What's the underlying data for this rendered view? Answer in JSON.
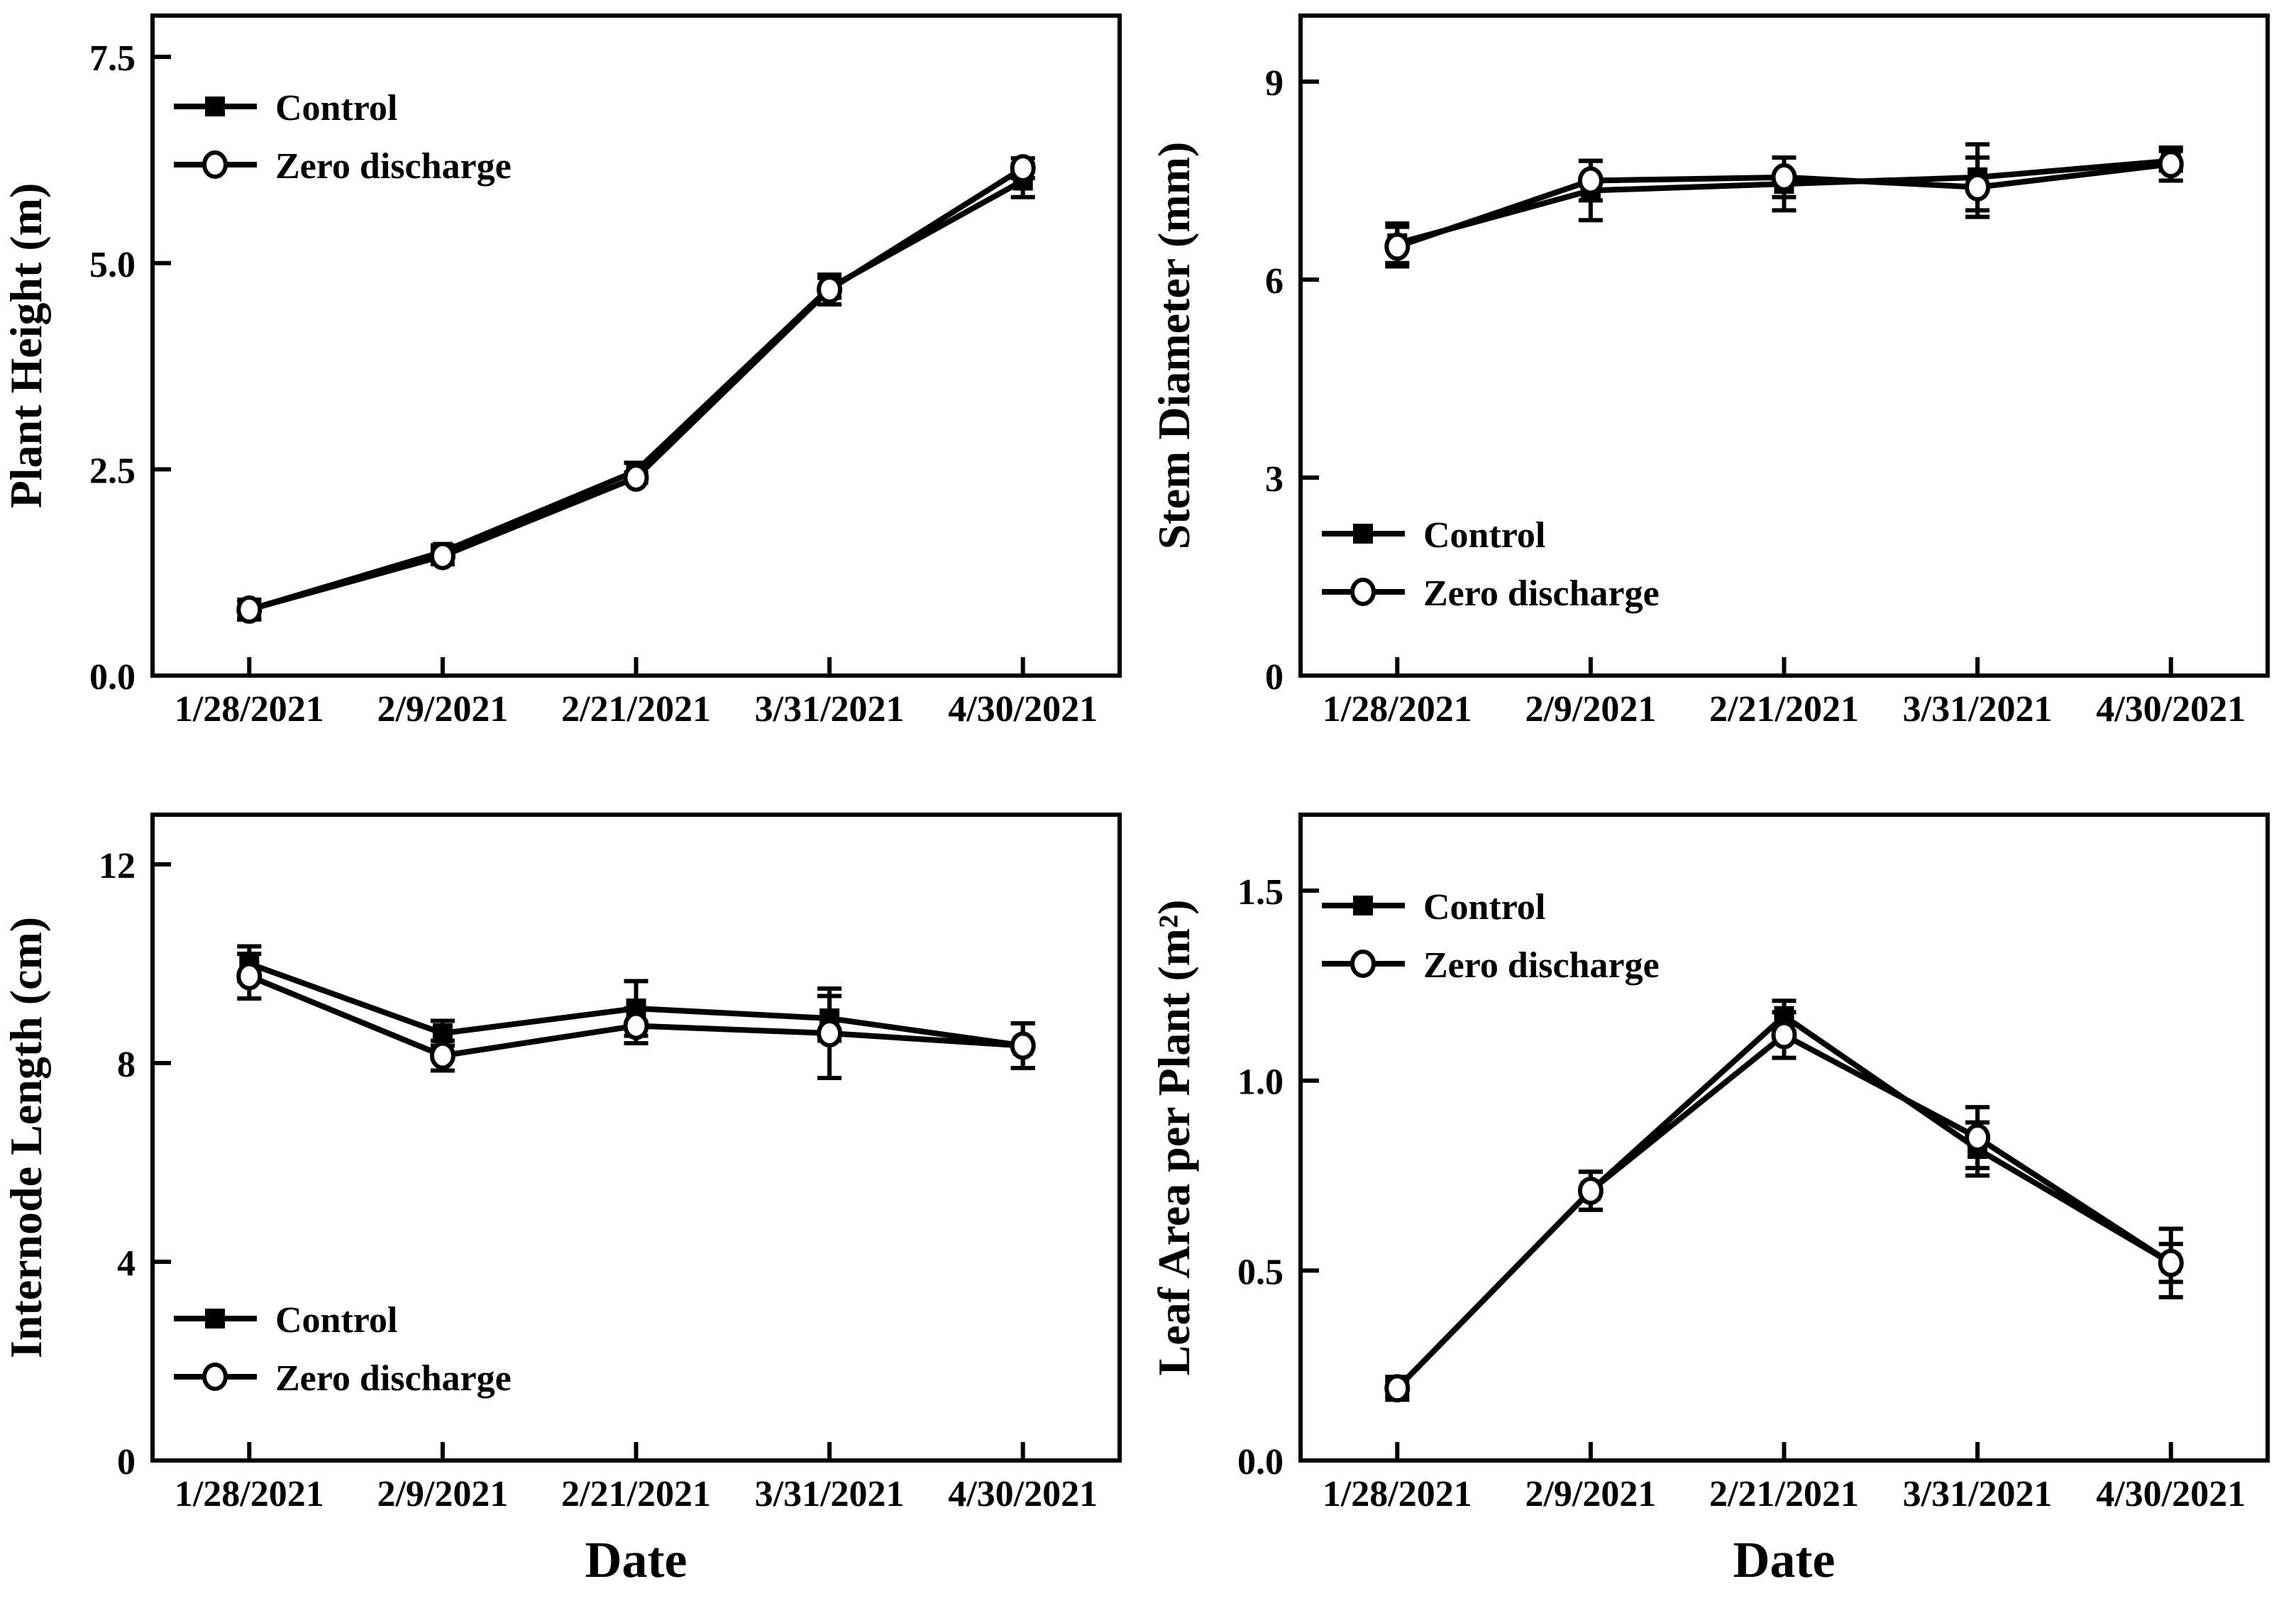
{
  "style": {
    "foreground": "#000000",
    "background": "#ffffff"
  },
  "chart_data": [
    {
      "type": "line",
      "title": "",
      "ylabel": "Plant Height (m)",
      "xlabel": "",
      "categories": [
        "1/28/2021",
        "2/9/2021",
        "2/21/2021",
        "3/31/2021",
        "4/30/2021"
      ],
      "ylim": [
        0,
        8
      ],
      "yticks": [
        {
          "v": 0.0,
          "label": "0.0"
        },
        {
          "v": 2.5,
          "label": "2.5"
        },
        {
          "v": 5.0,
          "label": "5.0"
        },
        {
          "v": 7.5,
          "label": "7.5"
        }
      ],
      "grid": false,
      "legend_pos": "top-left",
      "series": [
        {
          "name": "Control",
          "marker": "filled-square",
          "values": [
            0.8,
            1.5,
            2.48,
            4.7,
            6.0
          ],
          "errors": [
            0.1,
            0.08,
            0.1,
            0.12,
            0.2
          ]
        },
        {
          "name": "Zero discharge",
          "marker": "open-circle",
          "values": [
            0.8,
            1.45,
            2.4,
            4.68,
            6.15
          ],
          "errors": [
            0.12,
            0.1,
            0.06,
            0.18,
            0.12
          ]
        }
      ]
    },
    {
      "type": "line",
      "title": "",
      "ylabel": "Stem Diameter (mm)",
      "xlabel": "",
      "categories": [
        "1/28/2021",
        "2/9/2021",
        "2/21/2021",
        "3/31/2021",
        "4/30/2021"
      ],
      "ylim": [
        0,
        10
      ],
      "yticks": [
        {
          "v": 0,
          "label": "0"
        },
        {
          "v": 3,
          "label": "3"
        },
        {
          "v": 6,
          "label": "6"
        },
        {
          "v": 9,
          "label": "9"
        }
      ],
      "grid": false,
      "legend_pos": "bottom-left",
      "series": [
        {
          "name": "Control",
          "marker": "filled-square",
          "values": [
            6.55,
            7.35,
            7.45,
            7.55,
            7.8
          ],
          "errors": [
            0.3,
            0.45,
            0.4,
            0.5,
            0.15
          ]
        },
        {
          "name": "Zero discharge",
          "marker": "open-circle",
          "values": [
            6.5,
            7.5,
            7.55,
            7.4,
            7.75
          ],
          "errors": [
            0.3,
            0.3,
            0.3,
            0.45,
            0.25
          ]
        }
      ]
    },
    {
      "type": "line",
      "title": "",
      "ylabel": "Internode Length (cm)",
      "xlabel": "Date",
      "categories": [
        "1/28/2021",
        "2/9/2021",
        "2/21/2021",
        "3/31/2021",
        "4/30/2021"
      ],
      "ylim": [
        0,
        13
      ],
      "yticks": [
        {
          "v": 0,
          "label": "0"
        },
        {
          "v": 4,
          "label": "4"
        },
        {
          "v": 8,
          "label": "8"
        },
        {
          "v": 12,
          "label": "12"
        }
      ],
      "grid": false,
      "legend_pos": "bottom-left",
      "series": [
        {
          "name": "Control",
          "marker": "filled-square",
          "values": [
            10.0,
            8.6,
            9.1,
            8.9,
            8.35
          ],
          "errors": [
            0.35,
            0.25,
            0.55,
            0.45,
            0.45
          ]
        },
        {
          "name": "Zero discharge",
          "marker": "open-circle",
          "values": [
            9.75,
            8.15,
            8.75,
            8.6,
            8.35
          ],
          "errors": [
            0.45,
            0.3,
            0.35,
            0.9,
            0.45
          ]
        }
      ]
    },
    {
      "type": "line",
      "title": "",
      "ylabel": "Leaf Area per Plant (m²)",
      "xlabel": "Date",
      "categories": [
        "1/28/2021",
        "2/9/2021",
        "2/21/2021",
        "3/31/2021",
        "4/30/2021"
      ],
      "ylim": [
        0,
        1.7
      ],
      "yticks": [
        {
          "v": 0.0,
          "label": "0.0"
        },
        {
          "v": 0.5,
          "label": "0.5"
        },
        {
          "v": 1.0,
          "label": "1.0"
        },
        {
          "v": 1.5,
          "label": "1.5"
        }
      ],
      "grid": false,
      "legend_pos": "top-left",
      "series": [
        {
          "name": "Control",
          "marker": "filled-square",
          "values": [
            0.19,
            0.71,
            1.17,
            0.82,
            0.52
          ],
          "errors": [
            0.03,
            0.05,
            0.04,
            0.07,
            0.05
          ]
        },
        {
          "name": "Zero discharge",
          "marker": "open-circle",
          "values": [
            0.19,
            0.71,
            1.12,
            0.85,
            0.52
          ],
          "errors": [
            0.02,
            0.05,
            0.06,
            0.08,
            0.09
          ]
        }
      ]
    }
  ]
}
